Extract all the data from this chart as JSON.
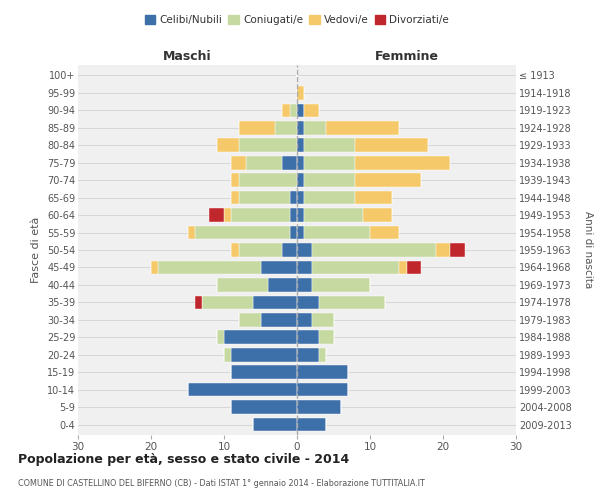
{
  "age_groups": [
    "0-4",
    "5-9",
    "10-14",
    "15-19",
    "20-24",
    "25-29",
    "30-34",
    "35-39",
    "40-44",
    "45-49",
    "50-54",
    "55-59",
    "60-64",
    "65-69",
    "70-74",
    "75-79",
    "80-84",
    "85-89",
    "90-94",
    "95-99",
    "100+"
  ],
  "birth_years": [
    "2009-2013",
    "2004-2008",
    "1999-2003",
    "1994-1998",
    "1989-1993",
    "1984-1988",
    "1979-1983",
    "1974-1978",
    "1969-1973",
    "1964-1968",
    "1959-1963",
    "1954-1958",
    "1949-1953",
    "1944-1948",
    "1939-1943",
    "1934-1938",
    "1929-1933",
    "1924-1928",
    "1919-1923",
    "1914-1918",
    "≤ 1913"
  ],
  "males": {
    "celibi": [
      6,
      9,
      15,
      9,
      9,
      10,
      5,
      6,
      4,
      5,
      2,
      1,
      1,
      1,
      0,
      2,
      0,
      0,
      0,
      0,
      0
    ],
    "coniugati": [
      0,
      0,
      0,
      0,
      1,
      1,
      3,
      7,
      7,
      14,
      6,
      13,
      8,
      7,
      8,
      5,
      8,
      3,
      1,
      0,
      0
    ],
    "vedovi": [
      0,
      0,
      0,
      0,
      0,
      0,
      0,
      0,
      0,
      1,
      1,
      1,
      1,
      1,
      1,
      2,
      3,
      5,
      1,
      0,
      0
    ],
    "divorziati": [
      0,
      0,
      0,
      0,
      0,
      0,
      0,
      1,
      0,
      0,
      0,
      0,
      2,
      0,
      0,
      0,
      0,
      0,
      0,
      0,
      0
    ]
  },
  "females": {
    "nubili": [
      4,
      6,
      7,
      7,
      3,
      3,
      2,
      3,
      2,
      2,
      2,
      1,
      1,
      1,
      1,
      1,
      1,
      1,
      1,
      0,
      0
    ],
    "coniugate": [
      0,
      0,
      0,
      0,
      1,
      2,
      3,
      9,
      8,
      12,
      17,
      9,
      8,
      7,
      7,
      7,
      7,
      3,
      0,
      0,
      0
    ],
    "vedove": [
      0,
      0,
      0,
      0,
      0,
      0,
      0,
      0,
      0,
      1,
      2,
      4,
      4,
      5,
      9,
      13,
      10,
      10,
      2,
      1,
      0
    ],
    "divorziate": [
      0,
      0,
      0,
      0,
      0,
      0,
      0,
      0,
      0,
      2,
      2,
      0,
      0,
      0,
      0,
      0,
      0,
      0,
      0,
      0,
      0
    ]
  },
  "color_celibi": "#3d6fa8",
  "color_coniugati": "#c5d9a0",
  "color_vedovi": "#f5c96a",
  "color_divorziati": "#c0272d",
  "xlim": 30,
  "title": "Popolazione per età, sesso e stato civile - 2014",
  "subtitle": "COMUNE DI CASTELLINO DEL BIFERNO (CB) - Dati ISTAT 1° gennaio 2014 - Elaborazione TUTTITALIA.IT",
  "xlabel_left": "Maschi",
  "xlabel_right": "Femmine",
  "ylabel": "Fasce di età",
  "ylabel_right": "Anni di nascita",
  "bg_color": "#f0f0f0",
  "bar_height": 0.78
}
